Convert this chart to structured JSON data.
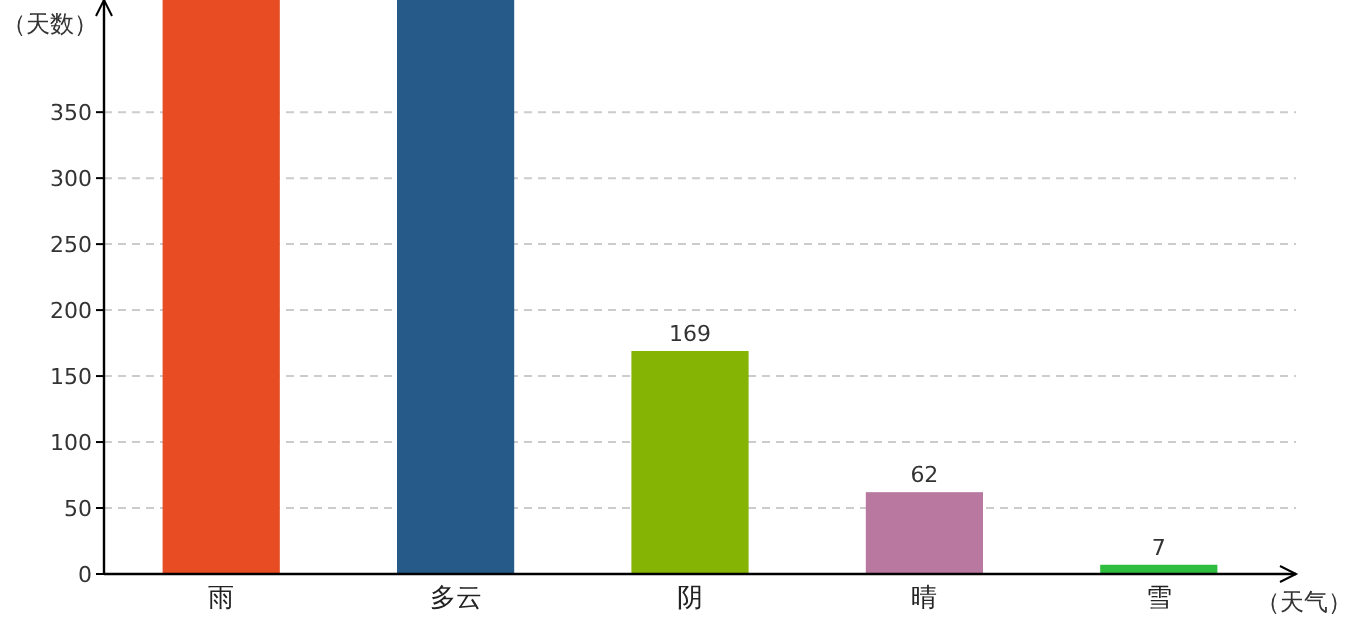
{
  "chart_data": {
    "type": "bar",
    "ylabel": "（天数）",
    "xlabel": "（天气）",
    "categories": [
      "雨",
      "多云",
      "阴",
      "晴",
      "雪"
    ],
    "values": [
      435,
      435,
      169,
      62,
      7
    ],
    "value_labels": [
      null,
      null,
      "169",
      "62",
      "7"
    ],
    "colors": [
      "#e84c22",
      "#265a88",
      "#86b404",
      "#b8789f",
      "#2fbd3f"
    ],
    "ylim": [
      0,
      435
    ],
    "yticks": [
      0,
      50,
      100,
      150,
      200,
      250,
      300,
      350
    ],
    "grid": "y"
  }
}
